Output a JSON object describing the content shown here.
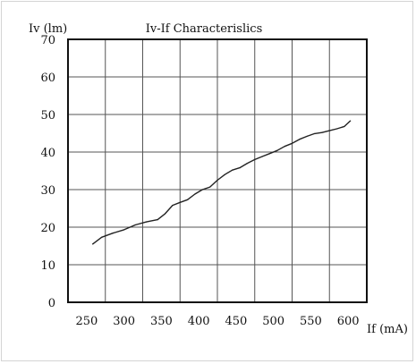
{
  "chart_data": {
    "type": "line",
    "title": "Iv-If Characterislics",
    "ylabel": "Iv (lm)",
    "xlabel": "If (mA)",
    "xlim": [
      250,
      600
    ],
    "ylim": [
      0,
      70
    ],
    "x_ticks": [
      "250",
      "300",
      "350",
      "400",
      "450",
      "500",
      "550",
      "600"
    ],
    "y_ticks": [
      "0",
      "10",
      "20",
      "30",
      "40",
      "50",
      "60",
      "70"
    ],
    "grid": true,
    "series": [
      {
        "x": [
          258,
          270,
          285,
          300,
          315,
          330,
          345,
          355,
          365,
          375,
          385,
          395,
          405,
          415,
          425,
          435,
          445,
          455,
          465,
          475,
          485,
          495,
          505,
          515,
          525,
          535,
          545,
          555,
          565,
          575,
          585,
          595,
          603
        ],
        "y": [
          15.5,
          17.3,
          18.4,
          19.3,
          20.6,
          21.4,
          22.0,
          23.6,
          25.8,
          26.6,
          27.3,
          28.8,
          30.0,
          30.7,
          32.5,
          34.0,
          35.2,
          35.8,
          37.0,
          38.0,
          38.8,
          39.6,
          40.4,
          41.5,
          42.3,
          43.4,
          44.2,
          44.9,
          45.2,
          45.7,
          46.2,
          46.8,
          48.3
        ]
      }
    ]
  }
}
